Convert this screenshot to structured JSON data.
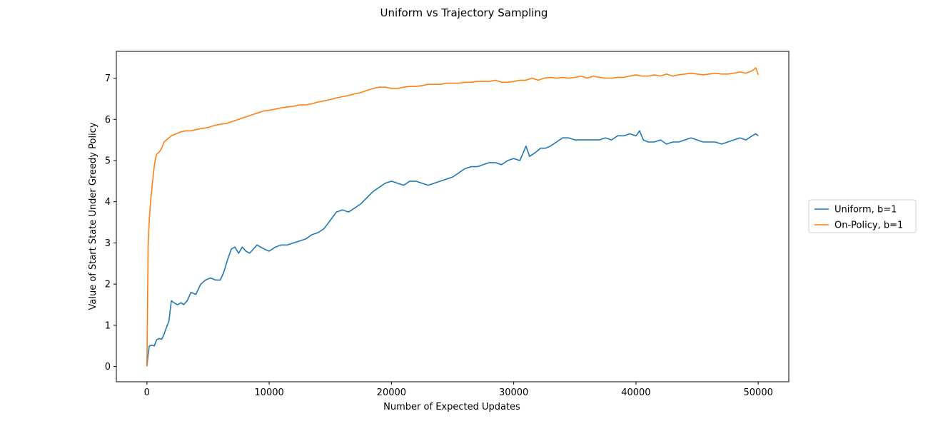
{
  "chart_data": {
    "type": "line",
    "title": "Uniform vs Trajectory Sampling",
    "xlabel": "Number of Expected Updates",
    "ylabel": "Value of Start State Under Greedy Policy",
    "xlim": [
      -2500,
      52500
    ],
    "ylim": [
      -0.37,
      7.65
    ],
    "xticks": [
      0,
      10000,
      20000,
      30000,
      40000,
      50000
    ],
    "yticks": [
      0,
      1,
      2,
      3,
      4,
      5,
      6,
      7
    ],
    "grid": false,
    "legend_position": "right-outside",
    "series": [
      {
        "name": "Uniform, b=1",
        "color": "#1f77b4",
        "points": [
          [
            0,
            0.0
          ],
          [
            100,
            0.3
          ],
          [
            200,
            0.5
          ],
          [
            400,
            0.52
          ],
          [
            600,
            0.5
          ],
          [
            800,
            0.65
          ],
          [
            1000,
            0.68
          ],
          [
            1200,
            0.66
          ],
          [
            1400,
            0.78
          ],
          [
            1600,
            0.95
          ],
          [
            1800,
            1.1
          ],
          [
            2000,
            1.6
          ],
          [
            2200,
            1.55
          ],
          [
            2500,
            1.5
          ],
          [
            2800,
            1.55
          ],
          [
            3000,
            1.5
          ],
          [
            3300,
            1.6
          ],
          [
            3600,
            1.8
          ],
          [
            4000,
            1.75
          ],
          [
            4400,
            2.0
          ],
          [
            4800,
            2.1
          ],
          [
            5200,
            2.15
          ],
          [
            5600,
            2.1
          ],
          [
            6000,
            2.1
          ],
          [
            6300,
            2.3
          ],
          [
            6600,
            2.6
          ],
          [
            6900,
            2.85
          ],
          [
            7200,
            2.9
          ],
          [
            7500,
            2.75
          ],
          [
            7800,
            2.9
          ],
          [
            8100,
            2.8
          ],
          [
            8400,
            2.75
          ],
          [
            8700,
            2.85
          ],
          [
            9000,
            2.95
          ],
          [
            9300,
            2.9
          ],
          [
            9600,
            2.85
          ],
          [
            10000,
            2.8
          ],
          [
            10500,
            2.9
          ],
          [
            11000,
            2.95
          ],
          [
            11500,
            2.95
          ],
          [
            12000,
            3.0
          ],
          [
            12500,
            3.05
          ],
          [
            13000,
            3.1
          ],
          [
            13500,
            3.2
          ],
          [
            14000,
            3.25
          ],
          [
            14500,
            3.35
          ],
          [
            15000,
            3.55
          ],
          [
            15500,
            3.75
          ],
          [
            16000,
            3.8
          ],
          [
            16500,
            3.75
          ],
          [
            17000,
            3.85
          ],
          [
            17500,
            3.95
          ],
          [
            18000,
            4.1
          ],
          [
            18500,
            4.25
          ],
          [
            19000,
            4.35
          ],
          [
            19500,
            4.45
          ],
          [
            20000,
            4.5
          ],
          [
            20500,
            4.45
          ],
          [
            21000,
            4.4
          ],
          [
            21500,
            4.5
          ],
          [
            22000,
            4.5
          ],
          [
            22500,
            4.45
          ],
          [
            23000,
            4.4
          ],
          [
            23500,
            4.45
          ],
          [
            24000,
            4.5
          ],
          [
            24500,
            4.55
          ],
          [
            25000,
            4.6
          ],
          [
            25500,
            4.7
          ],
          [
            26000,
            4.8
          ],
          [
            26500,
            4.85
          ],
          [
            27000,
            4.85
          ],
          [
            27500,
            4.9
          ],
          [
            28000,
            4.95
          ],
          [
            28500,
            4.95
          ],
          [
            29000,
            4.9
          ],
          [
            29500,
            5.0
          ],
          [
            30000,
            5.05
          ],
          [
            30500,
            5.0
          ],
          [
            30800,
            5.2
          ],
          [
            31000,
            5.35
          ],
          [
            31300,
            5.1
          ],
          [
            31800,
            5.2
          ],
          [
            32200,
            5.3
          ],
          [
            32600,
            5.3
          ],
          [
            33000,
            5.35
          ],
          [
            33500,
            5.45
          ],
          [
            34000,
            5.55
          ],
          [
            34500,
            5.55
          ],
          [
            35000,
            5.5
          ],
          [
            35500,
            5.5
          ],
          [
            36000,
            5.5
          ],
          [
            36500,
            5.5
          ],
          [
            37000,
            5.5
          ],
          [
            37500,
            5.55
          ],
          [
            38000,
            5.5
          ],
          [
            38500,
            5.6
          ],
          [
            39000,
            5.6
          ],
          [
            39500,
            5.65
          ],
          [
            40000,
            5.6
          ],
          [
            40300,
            5.72
          ],
          [
            40600,
            5.5
          ],
          [
            41000,
            5.45
          ],
          [
            41500,
            5.45
          ],
          [
            42000,
            5.5
          ],
          [
            42500,
            5.4
          ],
          [
            43000,
            5.45
          ],
          [
            43500,
            5.45
          ],
          [
            44000,
            5.5
          ],
          [
            44500,
            5.55
          ],
          [
            45000,
            5.5
          ],
          [
            45500,
            5.45
          ],
          [
            46000,
            5.45
          ],
          [
            46500,
            5.45
          ],
          [
            47000,
            5.4
          ],
          [
            47500,
            5.45
          ],
          [
            48000,
            5.5
          ],
          [
            48500,
            5.55
          ],
          [
            49000,
            5.5
          ],
          [
            49500,
            5.6
          ],
          [
            49800,
            5.65
          ],
          [
            50000,
            5.6
          ]
        ]
      },
      {
        "name": "On-Policy, b=1",
        "color": "#ff7f0e",
        "points": [
          [
            0,
            0.0
          ],
          [
            100,
            2.9
          ],
          [
            200,
            3.6
          ],
          [
            300,
            4.0
          ],
          [
            400,
            4.3
          ],
          [
            500,
            4.6
          ],
          [
            600,
            4.85
          ],
          [
            700,
            5.05
          ],
          [
            800,
            5.15
          ],
          [
            1000,
            5.2
          ],
          [
            1200,
            5.3
          ],
          [
            1400,
            5.45
          ],
          [
            1600,
            5.5
          ],
          [
            1800,
            5.55
          ],
          [
            2000,
            5.6
          ],
          [
            2400,
            5.65
          ],
          [
            2800,
            5.7
          ],
          [
            3200,
            5.72
          ],
          [
            3600,
            5.72
          ],
          [
            4000,
            5.75
          ],
          [
            4500,
            5.78
          ],
          [
            5000,
            5.8
          ],
          [
            5500,
            5.85
          ],
          [
            6000,
            5.88
          ],
          [
            6500,
            5.9
          ],
          [
            7000,
            5.95
          ],
          [
            7500,
            6.0
          ],
          [
            8000,
            6.05
          ],
          [
            8500,
            6.1
          ],
          [
            9000,
            6.15
          ],
          [
            9500,
            6.2
          ],
          [
            10000,
            6.22
          ],
          [
            10500,
            6.25
          ],
          [
            11000,
            6.28
          ],
          [
            11500,
            6.3
          ],
          [
            12000,
            6.32
          ],
          [
            12500,
            6.35
          ],
          [
            13000,
            6.35
          ],
          [
            13500,
            6.38
          ],
          [
            14000,
            6.42
          ],
          [
            14500,
            6.45
          ],
          [
            15000,
            6.48
          ],
          [
            15500,
            6.52
          ],
          [
            16000,
            6.55
          ],
          [
            16500,
            6.58
          ],
          [
            17000,
            6.62
          ],
          [
            17500,
            6.65
          ],
          [
            18000,
            6.7
          ],
          [
            18500,
            6.75
          ],
          [
            19000,
            6.78
          ],
          [
            19500,
            6.78
          ],
          [
            20000,
            6.75
          ],
          [
            20500,
            6.75
          ],
          [
            21000,
            6.78
          ],
          [
            21500,
            6.8
          ],
          [
            22000,
            6.8
          ],
          [
            22500,
            6.82
          ],
          [
            23000,
            6.85
          ],
          [
            23500,
            6.85
          ],
          [
            24000,
            6.85
          ],
          [
            24500,
            6.88
          ],
          [
            25000,
            6.88
          ],
          [
            25500,
            6.88
          ],
          [
            26000,
            6.9
          ],
          [
            26500,
            6.9
          ],
          [
            27000,
            6.92
          ],
          [
            27500,
            6.92
          ],
          [
            28000,
            6.92
          ],
          [
            28500,
            6.95
          ],
          [
            29000,
            6.9
          ],
          [
            29500,
            6.9
          ],
          [
            30000,
            6.92
          ],
          [
            30500,
            6.95
          ],
          [
            31000,
            6.95
          ],
          [
            31500,
            7.0
          ],
          [
            32000,
            6.95
          ],
          [
            32500,
            7.0
          ],
          [
            33000,
            7.02
          ],
          [
            33500,
            7.0
          ],
          [
            34000,
            7.02
          ],
          [
            34500,
            7.0
          ],
          [
            35000,
            7.02
          ],
          [
            35500,
            7.05
          ],
          [
            36000,
            7.0
          ],
          [
            36500,
            7.05
          ],
          [
            37000,
            7.02
          ],
          [
            37500,
            7.0
          ],
          [
            38000,
            7.0
          ],
          [
            38500,
            7.02
          ],
          [
            39000,
            7.02
          ],
          [
            39500,
            7.05
          ],
          [
            40000,
            7.08
          ],
          [
            40500,
            7.05
          ],
          [
            41000,
            7.05
          ],
          [
            41500,
            7.08
          ],
          [
            42000,
            7.05
          ],
          [
            42500,
            7.1
          ],
          [
            43000,
            7.05
          ],
          [
            43500,
            7.08
          ],
          [
            44000,
            7.1
          ],
          [
            44500,
            7.12
          ],
          [
            45000,
            7.1
          ],
          [
            45500,
            7.08
          ],
          [
            46000,
            7.1
          ],
          [
            46500,
            7.12
          ],
          [
            47000,
            7.1
          ],
          [
            47500,
            7.1
          ],
          [
            48000,
            7.12
          ],
          [
            48500,
            7.15
          ],
          [
            49000,
            7.12
          ],
          [
            49500,
            7.18
          ],
          [
            49800,
            7.25
          ],
          [
            50000,
            7.08
          ]
        ]
      }
    ]
  }
}
